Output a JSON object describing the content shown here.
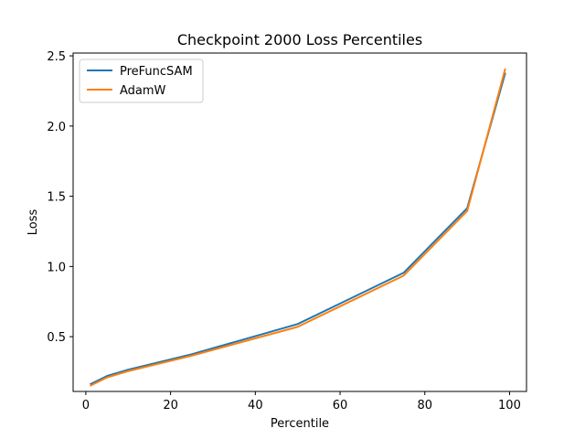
{
  "chart_data": {
    "type": "line",
    "title": "Checkpoint 2000 Loss Percentiles",
    "xlabel": "Percentile",
    "ylabel": "Loss",
    "xlim": [
      -3,
      104
    ],
    "ylim": [
      0.11,
      2.52
    ],
    "xticks": [
      0,
      20,
      40,
      60,
      80,
      100
    ],
    "yticks": [
      0.5,
      1.0,
      1.5,
      2.0,
      2.5
    ],
    "xtick_labels": [
      "0",
      "20",
      "40",
      "60",
      "80",
      "100"
    ],
    "ytick_labels": [
      "0.5",
      "1.0",
      "1.5",
      "2.0",
      "2.5"
    ],
    "x": [
      1,
      5,
      10,
      25,
      50,
      75,
      90,
      99
    ],
    "series": [
      {
        "name": "PreFuncSAM",
        "color": "#1f77b4",
        "values": [
          0.16,
          0.22,
          0.265,
          0.375,
          0.59,
          0.955,
          1.415,
          2.38
        ]
      },
      {
        "name": "AdamW",
        "color": "#ff7f0e",
        "values": [
          0.15,
          0.21,
          0.255,
          0.365,
          0.57,
          0.935,
          1.395,
          2.41
        ]
      }
    ],
    "legend": "top-left",
    "grid": false
  }
}
